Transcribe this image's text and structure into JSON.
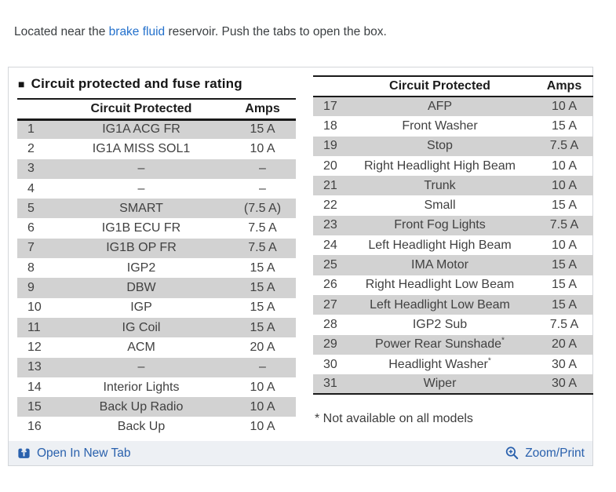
{
  "intro": {
    "prefix": "Located near the ",
    "link": "brake fluid",
    "suffix": " reservoir. Push the tabs to open the box."
  },
  "section": {
    "bullet": "■",
    "title": "Circuit protected and fuse rating"
  },
  "left_table": {
    "headers": {
      "circuit": "Circuit Protected",
      "amps": "Amps"
    },
    "rows": [
      {
        "no": "1",
        "circuit": "IG1A ACG FR",
        "amps": "15 A"
      },
      {
        "no": "2",
        "circuit": "IG1A MISS SOL1",
        "amps": "10 A"
      },
      {
        "no": "3",
        "circuit": "–",
        "amps": "–"
      },
      {
        "no": "4",
        "circuit": "–",
        "amps": "–"
      },
      {
        "no": "5",
        "circuit": "SMART",
        "amps": "(7.5 A)"
      },
      {
        "no": "6",
        "circuit": "IG1B ECU FR",
        "amps": "7.5 A"
      },
      {
        "no": "7",
        "circuit": "IG1B OP FR",
        "amps": "7.5 A"
      },
      {
        "no": "8",
        "circuit": "IGP2",
        "amps": "15 A"
      },
      {
        "no": "9",
        "circuit": "DBW",
        "amps": "15 A"
      },
      {
        "no": "10",
        "circuit": "IGP",
        "amps": "15 A"
      },
      {
        "no": "11",
        "circuit": "IG Coil",
        "amps": "15 A"
      },
      {
        "no": "12",
        "circuit": "ACM",
        "amps": "20 A"
      },
      {
        "no": "13",
        "circuit": "–",
        "amps": "–"
      },
      {
        "no": "14",
        "circuit": "Interior Lights",
        "amps": "10 A"
      },
      {
        "no": "15",
        "circuit": "Back Up Radio",
        "amps": "10 A"
      },
      {
        "no": "16",
        "circuit": "Back Up",
        "amps": "10 A"
      }
    ]
  },
  "right_table": {
    "headers": {
      "circuit": "Circuit Protected",
      "amps": "Amps"
    },
    "rows": [
      {
        "no": "17",
        "circuit": "AFP",
        "amps": "10 A"
      },
      {
        "no": "18",
        "circuit": "Front Washer",
        "amps": "15 A"
      },
      {
        "no": "19",
        "circuit": "Stop",
        "amps": "7.5 A"
      },
      {
        "no": "20",
        "circuit": "Right Headlight High Beam",
        "amps": "10 A"
      },
      {
        "no": "21",
        "circuit": "Trunk",
        "amps": "10 A"
      },
      {
        "no": "22",
        "circuit": "Small",
        "amps": "15 A"
      },
      {
        "no": "23",
        "circuit": "Front Fog Lights",
        "amps": "7.5 A"
      },
      {
        "no": "24",
        "circuit": "Left Headlight High Beam",
        "amps": "10 A"
      },
      {
        "no": "25",
        "circuit": "IMA Motor",
        "amps": "15 A"
      },
      {
        "no": "26",
        "circuit": "Right Headlight Low Beam",
        "amps": "15 A"
      },
      {
        "no": "27",
        "circuit": "Left Headlight Low Beam",
        "amps": "15 A"
      },
      {
        "no": "28",
        "circuit": "IGP2 Sub",
        "amps": "7.5 A"
      },
      {
        "no": "29",
        "circuit": "Power Rear Sunshade*",
        "amps": "20 A"
      },
      {
        "no": "30",
        "circuit": "Headlight Washer*",
        "amps": "30 A"
      },
      {
        "no": "31",
        "circuit": "Wiper",
        "amps": "30 A"
      }
    ]
  },
  "footnote": "* Not available on all models",
  "footer": {
    "open_link": "Open In New Tab",
    "zoom_link": "Zoom/Print"
  },
  "colors": {
    "stripe_gray": "#d2d2d2",
    "footer_link_blue": "#2a61ad",
    "intro_link_blue": "#2471cc",
    "table_line_black": "#1a1a1a"
  }
}
